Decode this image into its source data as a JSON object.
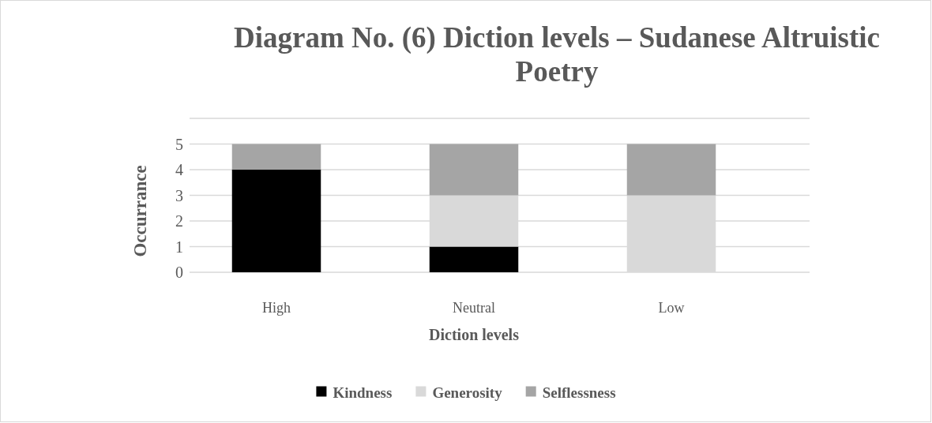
{
  "chart_data": {
    "type": "bar",
    "title": "Diagram No. (6) Diction levels – Sudanese Altruistic Poetry",
    "xlabel": "Diction levels",
    "ylabel": "Occurrance",
    "categories": [
      "High",
      "Neutral",
      "Low"
    ],
    "series": [
      {
        "name": "Kindness",
        "color": "#000000",
        "values": [
          4,
          1,
          0
        ]
      },
      {
        "name": "Generosity",
        "color": "#d9d9d9",
        "values": [
          0,
          2,
          3
        ]
      },
      {
        "name": "Selflessness",
        "color": "#a5a5a5",
        "values": [
          1,
          2,
          2
        ]
      }
    ],
    "stacked": true,
    "ylim": [
      0,
      6
    ],
    "yticks": [
      0,
      1,
      2,
      3,
      4,
      5,
      {
        "value": 6,
        "label": null
      }
    ],
    "grid": "y",
    "legend": "bottom"
  }
}
